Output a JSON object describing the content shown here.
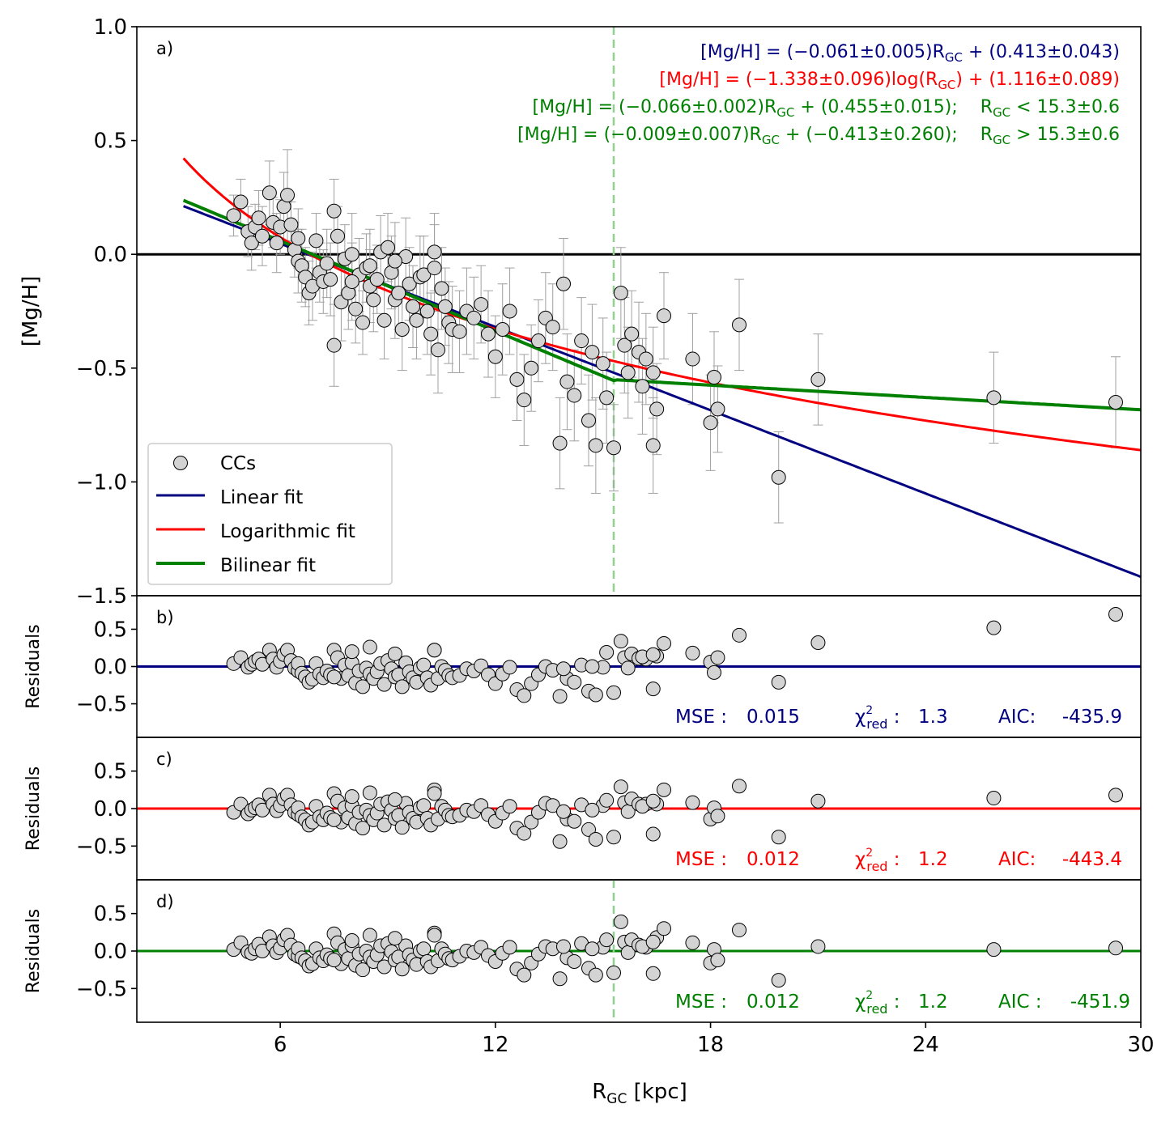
{
  "chart_data": {
    "type": "scatter",
    "title": "",
    "xlabel": "R",
    "xlabel_sub": "GC",
    "xlabel_unit": " [kpc]",
    "xlim": [
      2,
      30
    ],
    "xticks": [
      "6",
      "12",
      "18",
      "24",
      "30"
    ],
    "xtick_values": [
      6,
      12,
      18,
      24,
      30
    ],
    "vline_x": 15.3,
    "colors": {
      "linear": "#000080",
      "log": "#ff0000",
      "bilinear": "#008000",
      "vline": "#90d090",
      "marker": "#d3d3d3",
      "errorbar": "#a0a0a0"
    },
    "panels": [
      {
        "id": "a",
        "tag": "a)",
        "ylabel": "[Mg/H]",
        "ylim": [
          -1.5,
          1.0
        ],
        "yticks": [
          "1.0",
          "0.5",
          "0.0",
          "−0.5",
          "−1.0",
          "−1.5"
        ],
        "ytick_values": [
          1.0,
          0.5,
          0.0,
          -0.5,
          -1.0,
          -1.5
        ],
        "equations": [
          {
            "text": "[Mg/H] = (−0.061±0.005)R",
            "sub": "GC",
            "tail": " + (0.413±0.043)",
            "color": "#000080"
          },
          {
            "text": "[Mg/H] = (−1.338±0.096)log(R",
            "sub": "GC",
            "tail": ") + (1.116±0.089)",
            "color": "#ff0000"
          },
          {
            "text": "[Mg/H] = (−0.066±0.002)R",
            "sub": "GC",
            "tail": " + (0.455±0.015);    R",
            "sub2": "GC",
            "tail2": " < 15.3±0.6",
            "color": "#008000"
          },
          {
            "text": "[Mg/H] = (−0.009±0.007)R",
            "sub": "GC",
            "tail": " + (−0.413±0.260);    R",
            "sub2": "GC",
            "tail2": " > 15.3±0.6",
            "color": "#008000"
          }
        ],
        "legend": [
          "CCs",
          "Linear fit",
          "Logarithmic fit",
          "Bilinear fit"
        ],
        "fits": {
          "linear": {
            "slope": -0.061,
            "intercept": 0.413
          },
          "log": {
            "a": -1.338,
            "b": 1.116
          },
          "bilinear": {
            "slope1": -0.066,
            "intercept1": 0.455,
            "break": 15.3,
            "slope2": -0.009,
            "intercept2": -0.413
          }
        }
      },
      {
        "id": "b",
        "tag": "b)",
        "ylabel": "Residuals",
        "ylim": [
          -0.95,
          0.95
        ],
        "yticks": [
          "0.5",
          "0.0",
          "−0.5"
        ],
        "ytick_values": [
          0.5,
          0.0,
          -0.5
        ],
        "line_color": "#000080",
        "stats": {
          "mse_label": "MSE :",
          "mse": "0.015",
          "chi_label": "χ",
          "chi_sup": "2",
          "chi_sub": "red",
          "chi_sep": " :",
          "chi": "1.3",
          "aic_label": "AIC:",
          "aic": "-435.9"
        }
      },
      {
        "id": "c",
        "tag": "c)",
        "ylabel": "Residuals",
        "ylim": [
          -0.95,
          0.95
        ],
        "yticks": [
          "0.5",
          "0.0",
          "−0.5"
        ],
        "ytick_values": [
          0.5,
          0.0,
          -0.5
        ],
        "line_color": "#ff0000",
        "stats": {
          "mse_label": "MSE :",
          "mse": "0.012",
          "chi_label": "χ",
          "chi_sup": "2",
          "chi_sub": "red",
          "chi_sep": " :",
          "chi": "1.2",
          "aic_label": "AIC:",
          "aic": "-443.4"
        }
      },
      {
        "id": "d",
        "tag": "d)",
        "ylabel": "Residuals",
        "ylim": [
          -0.95,
          0.95
        ],
        "yticks": [
          "0.5",
          "0.0",
          "−0.5"
        ],
        "ytick_values": [
          0.5,
          0.0,
          -0.5
        ],
        "line_color": "#008000",
        "stats": {
          "mse_label": "MSE :",
          "mse": "0.012",
          "chi_label": "χ",
          "chi_sup": "2",
          "chi_sub": "red",
          "chi_sep": " :",
          "chi": "1.2",
          "aic_label": "AIC :",
          "aic": "-451.9"
        }
      }
    ],
    "points": {
      "x": [
        4.7,
        4.9,
        5.1,
        5.2,
        5.3,
        5.4,
        5.5,
        5.7,
        5.8,
        5.9,
        6.0,
        6.1,
        6.2,
        6.3,
        6.4,
        6.5,
        6.5,
        6.6,
        6.7,
        6.8,
        6.9,
        7.0,
        7.1,
        7.2,
        7.3,
        7.4,
        7.5,
        7.6,
        7.7,
        7.8,
        7.9,
        8.0,
        8.1,
        8.2,
        8.3,
        8.4,
        8.5,
        8.6,
        8.7,
        8.8,
        8.9,
        9.0,
        9.1,
        9.2,
        9.3,
        9.4,
        9.5,
        9.6,
        9.7,
        9.8,
        9.9,
        10.0,
        10.1,
        10.2,
        10.3,
        10.4,
        10.5,
        10.6,
        10.7,
        10.8,
        11.0,
        11.2,
        11.4,
        11.6,
        11.8,
        12.0,
        12.2,
        12.4,
        12.6,
        12.8,
        13.0,
        13.2,
        13.4,
        13.6,
        13.8,
        14.0,
        14.2,
        14.4,
        14.6,
        14.8,
        15.0,
        15.3,
        15.5,
        15.6,
        15.7,
        15.8,
        16.0,
        16.2,
        16.4,
        16.5,
        16.7,
        17.5,
        18.0,
        18.1,
        18.2,
        18.8,
        19.9,
        21.0,
        25.9,
        29.3,
        7.5,
        8.0,
        8.5,
        9.2,
        10.3,
        13.9,
        14.7,
        15.1,
        16.1,
        16.4
      ],
      "y": [
        0.17,
        0.23,
        0.1,
        0.05,
        0.12,
        0.16,
        0.08,
        0.27,
        0.14,
        0.05,
        0.12,
        0.21,
        0.26,
        0.13,
        0.02,
        -0.03,
        0.07,
        -0.05,
        -0.1,
        -0.17,
        -0.14,
        0.06,
        -0.08,
        -0.12,
        -0.04,
        -0.11,
        0.19,
        0.08,
        -0.21,
        -0.02,
        -0.17,
        0.0,
        -0.24,
        -0.09,
        -0.3,
        -0.06,
        -0.14,
        -0.2,
        -0.11,
        0.01,
        -0.29,
        0.03,
        -0.08,
        -0.2,
        -0.17,
        -0.33,
        -0.01,
        -0.13,
        -0.23,
        -0.29,
        -0.1,
        -0.09,
        -0.25,
        -0.35,
        0.01,
        -0.42,
        -0.15,
        -0.23,
        -0.3,
        -0.33,
        -0.34,
        -0.25,
        -0.28,
        -0.22,
        -0.35,
        -0.45,
        -0.33,
        -0.25,
        -0.55,
        -0.64,
        -0.5,
        -0.38,
        -0.28,
        -0.32,
        -0.83,
        -0.56,
        -0.62,
        -0.38,
        -0.73,
        -0.84,
        -0.48,
        -0.85,
        -0.17,
        -0.4,
        -0.52,
        -0.35,
        -0.43,
        -0.46,
        -0.84,
        -0.68,
        -0.27,
        -0.46,
        -0.74,
        -0.54,
        -0.68,
        -0.31,
        -0.98,
        -0.55,
        -0.63,
        -0.65,
        -0.4,
        -0.12,
        -0.05,
        -0.03,
        -0.06,
        -0.13,
        -0.43,
        -0.63,
        -0.58,
        -0.52
      ],
      "yerr": [
        0.09,
        0.1,
        0.11,
        0.12,
        0.1,
        0.12,
        0.13,
        0.14,
        0.11,
        0.13,
        0.12,
        0.15,
        0.2,
        0.1,
        0.12,
        0.14,
        0.13,
        0.16,
        0.13,
        0.14,
        0.15,
        0.12,
        0.13,
        0.14,
        0.15,
        0.16,
        0.14,
        0.13,
        0.17,
        0.15,
        0.16,
        0.18,
        0.15,
        0.16,
        0.14,
        0.15,
        0.16,
        0.14,
        0.15,
        0.16,
        0.17,
        0.15,
        0.16,
        0.17,
        0.16,
        0.18,
        0.17,
        0.16,
        0.18,
        0.17,
        0.18,
        0.17,
        0.19,
        0.18,
        0.17,
        0.19,
        0.18,
        0.17,
        0.18,
        0.19,
        0.18,
        0.19,
        0.18,
        0.17,
        0.19,
        0.18,
        0.2,
        0.19,
        0.18,
        0.2,
        0.19,
        0.18,
        0.2,
        0.19,
        0.2,
        0.21,
        0.2,
        0.19,
        0.2,
        0.21,
        0.2,
        0.19,
        0.2,
        0.21,
        0.2,
        0.19,
        0.22,
        0.2,
        0.21,
        0.2,
        0.19,
        0.2,
        0.21,
        0.2,
        0.19,
        0.2,
        0.2,
        0.2,
        0.2,
        0.2,
        0.18,
        0.17,
        0.16,
        0.17,
        0.19,
        0.2,
        0.21,
        0.2,
        0.21,
        0.2
      ],
      "res_b": [
        0.04,
        0.12,
        -0.01,
        0.03,
        0.07,
        0.1,
        0.03,
        0.22,
        0.1,
        -0.01,
        0.07,
        0.16,
        0.22,
        0.08,
        -0.02,
        -0.06,
        0.04,
        -0.09,
        -0.14,
        -0.21,
        -0.17,
        0.04,
        -0.1,
        -0.15,
        -0.06,
        -0.11,
        0.22,
        0.12,
        -0.16,
        0.02,
        -0.12,
        0.05,
        -0.22,
        -0.06,
        -0.27,
        -0.02,
        -0.1,
        -0.16,
        -0.07,
        0.04,
        -0.24,
        0.08,
        -0.03,
        -0.14,
        -0.11,
        -0.27,
        0.05,
        -0.07,
        -0.15,
        -0.21,
        -0.02,
        0.02,
        -0.15,
        -0.25,
        0.22,
        -0.16,
        0.0,
        -0.05,
        -0.12,
        -0.15,
        -0.12,
        -0.03,
        -0.06,
        0.01,
        -0.11,
        -0.23,
        -0.1,
        -0.01,
        -0.31,
        -0.39,
        -0.23,
        -0.11,
        0.0,
        -0.05,
        -0.4,
        -0.16,
        -0.21,
        0.02,
        -0.33,
        -0.38,
        -0.01,
        -0.35,
        0.34,
        0.12,
        -0.02,
        0.17,
        0.11,
        0.1,
        -0.3,
        0.14,
        0.31,
        0.18,
        0.06,
        -0.08,
        0.12,
        0.42,
        -0.21,
        0.32,
        0.52,
        0.7,
        -0.14,
        0.2,
        0.26,
        0.17,
        0.22,
        -0.03,
        0.0,
        0.19,
        0.13,
        0.16
      ],
      "res_c": [
        -0.05,
        0.06,
        -0.07,
        -0.02,
        0.01,
        0.05,
        -0.02,
        0.18,
        0.06,
        -0.03,
        0.04,
        0.13,
        0.18,
        0.05,
        -0.05,
        -0.08,
        0.01,
        -0.11,
        -0.15,
        -0.22,
        -0.18,
        0.03,
        -0.11,
        -0.15,
        -0.06,
        -0.12,
        0.2,
        0.1,
        -0.18,
        0.01,
        -0.12,
        0.04,
        -0.2,
        -0.05,
        -0.26,
        -0.02,
        -0.09,
        -0.15,
        -0.06,
        0.06,
        -0.22,
        0.09,
        -0.02,
        -0.13,
        -0.09,
        -0.25,
        0.07,
        -0.05,
        -0.13,
        -0.18,
        0.01,
        0.04,
        -0.13,
        -0.22,
        0.25,
        -0.14,
        0.03,
        -0.02,
        -0.09,
        -0.11,
        -0.09,
        -0.02,
        -0.04,
        0.04,
        -0.08,
        -0.17,
        -0.06,
        0.03,
        -0.26,
        -0.33,
        -0.18,
        -0.05,
        0.07,
        0.04,
        -0.44,
        -0.14,
        -0.17,
        0.05,
        -0.28,
        -0.41,
        0.04,
        -0.38,
        0.29,
        0.08,
        -0.04,
        0.13,
        0.06,
        0.06,
        -0.34,
        0.06,
        0.25,
        0.08,
        -0.14,
        0.01,
        -0.1,
        0.3,
        -0.38,
        0.1,
        0.14,
        0.18,
        -0.15,
        0.16,
        0.21,
        0.12,
        0.2,
        -0.04,
        -0.02,
        0.11,
        0.03,
        0.1
      ],
      "res_d": [
        0.02,
        0.11,
        -0.01,
        -0.03,
        0.03,
        0.09,
        0.0,
        0.19,
        0.07,
        -0.02,
        0.04,
        0.15,
        0.21,
        0.08,
        -0.04,
        -0.07,
        0.03,
        -0.09,
        -0.13,
        -0.2,
        -0.17,
        0.03,
        -0.09,
        -0.13,
        -0.05,
        -0.1,
        0.23,
        0.11,
        -0.17,
        0.02,
        -0.1,
        0.07,
        -0.19,
        -0.04,
        -0.25,
        0.0,
        -0.08,
        -0.14,
        -0.05,
        0.07,
        -0.21,
        0.1,
        -0.01,
        -0.12,
        -0.08,
        -0.24,
        0.07,
        -0.05,
        -0.12,
        -0.18,
        0.0,
        0.03,
        -0.14,
        -0.21,
        0.24,
        -0.13,
        0.03,
        -0.04,
        -0.1,
        -0.12,
        -0.07,
        0.0,
        -0.02,
        0.05,
        -0.06,
        -0.14,
        -0.03,
        0.05,
        -0.24,
        -0.32,
        -0.16,
        -0.04,
        0.06,
        0.03,
        -0.37,
        -0.09,
        -0.14,
        0.1,
        -0.23,
        -0.32,
        0.05,
        -0.29,
        0.39,
        0.12,
        -0.02,
        0.15,
        0.08,
        0.05,
        -0.3,
        0.18,
        0.3,
        0.11,
        -0.16,
        0.02,
        -0.12,
        0.28,
        -0.39,
        0.06,
        0.02,
        0.04,
        -0.12,
        0.14,
        0.21,
        0.17,
        0.21,
        0.06,
        0.03,
        0.15,
        0.06,
        0.12
      ]
    }
  }
}
